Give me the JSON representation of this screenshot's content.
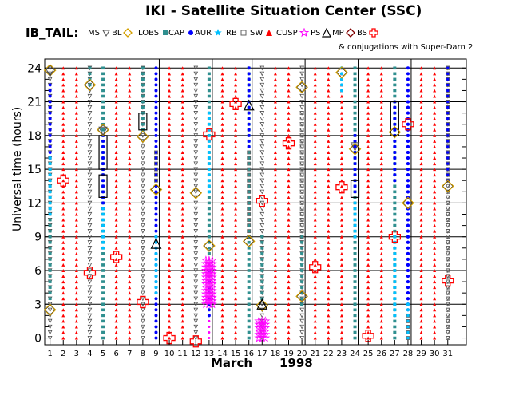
{
  "chart_data": {
    "type": "scatter",
    "title": "IKI - Satellite Situation Center (SSC)",
    "series_label": "IB_TAIL:",
    "legend": [
      {
        "label": "MS",
        "marker": "triangle-down-open",
        "color": "#505050"
      },
      {
        "label": "BL",
        "marker": "diamond-open",
        "color": "#d4a000"
      },
      {
        "label": "LOBS",
        "marker": "square",
        "color": "#2f8f8f"
      },
      {
        "label": "CAP",
        "marker": "circle",
        "color": "#0000ff"
      },
      {
        "label": "AUR",
        "marker": "star",
        "color": "#00c0ff"
      },
      {
        "label": "RB",
        "marker": "square-open",
        "color": "#606060"
      },
      {
        "label": "SW",
        "marker": "triangle",
        "color": "#ff0000"
      },
      {
        "label": "CUSP",
        "marker": "star-open",
        "color": "#ff00ff"
      },
      {
        "label": "PS",
        "marker": "triangle-open",
        "color": "#000000"
      },
      {
        "label": "MP",
        "marker": "diamond-open",
        "color": "#800000"
      },
      {
        "label": "BS",
        "marker": "cross-open",
        "color": "#ff0000"
      }
    ],
    "conjugation_note": "& conjugations with Super-Darn 2",
    "xlabel_month": "March",
    "xlabel_year": "1998",
    "ylabel": "Universal time (hours)",
    "x_ticks": [
      1,
      2,
      3,
      4,
      5,
      6,
      7,
      8,
      9,
      10,
      11,
      12,
      13,
      14,
      15,
      16,
      17,
      18,
      19,
      20,
      21,
      22,
      23,
      24,
      25,
      26,
      27,
      28,
      29,
      30,
      31
    ],
    "y_ticks": [
      0,
      3,
      6,
      9,
      12,
      15,
      18,
      21,
      24
    ],
    "xlim": [
      0.6,
      32.4
    ],
    "ylim": [
      -0.6,
      24.8
    ],
    "grid": true,
    "column_types": {
      "1": "MS",
      "2": "SW",
      "3": "SW",
      "4": "MS",
      "5": "LOBS",
      "6": "SW",
      "7": "SW",
      "8": "MS",
      "9": "CAP",
      "10": "SW",
      "11": "SW",
      "12": "MS",
      "13": "CUSP",
      "14": "SW",
      "15": "SW",
      "16": "LOBS",
      "17": "MS",
      "18": "SW",
      "19": "SW",
      "20": "MS",
      "21": "SW",
      "22": "SW",
      "23": "SW",
      "24": "LOBS",
      "25": "SW",
      "26": "SW",
      "27": "LOBS",
      "28": "CAP",
      "29": "SW",
      "30": "SW",
      "31": "MS"
    },
    "segments": [
      {
        "day": 1,
        "type": "LOBS",
        "from": 3.5,
        "to": 16.0
      },
      {
        "day": 1,
        "type": "CAP",
        "from": 16.0,
        "to": 22.5
      },
      {
        "day": 1,
        "type": "AUR",
        "from": 11.0,
        "to": 16.0
      },
      {
        "day": 4,
        "type": "LOBS",
        "from": 22.5,
        "to": 24.0
      },
      {
        "day": 5,
        "type": "CAP",
        "from": 11.5,
        "to": 18.0
      },
      {
        "day": 5,
        "type": "AUR",
        "from": 8.0,
        "to": 11.5
      },
      {
        "day": 8,
        "type": "LOBS",
        "from": 18.5,
        "to": 24.0
      },
      {
        "day": 9,
        "type": "AUR",
        "from": 4.0,
        "to": 9.0
      },
      {
        "day": 9,
        "type": "RB",
        "from": 14.0,
        "to": 16.5
      },
      {
        "day": 13,
        "type": "CAP",
        "from": 2.0,
        "to": 6.0
      },
      {
        "day": 13,
        "type": "LOBS",
        "from": 7.5,
        "to": 24.0
      },
      {
        "day": 13,
        "type": "AUR",
        "from": 13.0,
        "to": 20.0
      },
      {
        "day": 16,
        "type": "CAP",
        "from": 17.0,
        "to": 24.0
      },
      {
        "day": 16,
        "type": "RB",
        "from": 9.0,
        "to": 16.5
      },
      {
        "day": 17,
        "type": "LOBS",
        "from": 3.5,
        "to": 9.0
      },
      {
        "day": 20,
        "type": "LOBS",
        "from": 3.0,
        "to": 9.0
      },
      {
        "day": 20,
        "type": "RB",
        "from": 9.0,
        "to": 20.0
      },
      {
        "day": 23,
        "type": "AUR",
        "from": 22.0,
        "to": 24.0
      },
      {
        "day": 24,
        "type": "CAP",
        "from": 13.0,
        "to": 18.0
      },
      {
        "day": 24,
        "type": "AUR",
        "from": 9.0,
        "to": 12.0
      },
      {
        "day": 27,
        "type": "CAP",
        "from": 14.0,
        "to": 21.0
      },
      {
        "day": 27,
        "type": "AUR",
        "from": 2.0,
        "to": 9.0
      },
      {
        "day": 28,
        "type": "CAP",
        "from": 3.0,
        "to": 21.0
      },
      {
        "day": 28,
        "type": "AUR",
        "from": 0.0,
        "to": 3.0
      },
      {
        "day": 28,
        "type": "RB",
        "from": 0.0,
        "to": 2.0
      },
      {
        "day": 31,
        "type": "CAP",
        "from": 14.0,
        "to": 24.0
      },
      {
        "day": 31,
        "type": "RB",
        "from": 0.0,
        "to": 24.0
      }
    ],
    "cusp_clusters": [
      {
        "day": 13,
        "from": 3.0,
        "to": 7.0
      },
      {
        "day": 17,
        "from": 0.0,
        "to": 1.5
      }
    ],
    "bl_markers": [
      {
        "day": 1,
        "t": 23.8
      },
      {
        "day": 1,
        "t": 2.5
      },
      {
        "day": 4,
        "t": 22.5
      },
      {
        "day": 5,
        "t": 18.5
      },
      {
        "day": 8,
        "t": 17.9
      },
      {
        "day": 9,
        "t": 13.2
      },
      {
        "day": 12,
        "t": 12.9
      },
      {
        "day": 13,
        "t": 8.2
      },
      {
        "day": 16,
        "t": 8.6
      },
      {
        "day": 17,
        "t": 2.9
      },
      {
        "day": 20,
        "t": 22.3
      },
      {
        "day": 20,
        "t": 3.7
      },
      {
        "day": 23,
        "t": 23.6
      },
      {
        "day": 24,
        "t": 16.8
      },
      {
        "day": 27,
        "t": 18.3
      },
      {
        "day": 28,
        "t": 12.0
      },
      {
        "day": 31,
        "t": 13.5
      }
    ],
    "bs_markers": [
      {
        "day": 2,
        "t": 14.0
      },
      {
        "day": 4,
        "t": 5.8
      },
      {
        "day": 6,
        "t": 7.2
      },
      {
        "day": 8,
        "t": 3.2
      },
      {
        "day": 10,
        "t": 0.0
      },
      {
        "day": 12,
        "t": -0.3
      },
      {
        "day": 13,
        "t": 18.1
      },
      {
        "day": 15,
        "t": 20.8
      },
      {
        "day": 17,
        "t": 12.2
      },
      {
        "day": 19,
        "t": 17.3
      },
      {
        "day": 21,
        "t": 6.3
      },
      {
        "day": 23,
        "t": 13.4
      },
      {
        "day": 25,
        "t": 0.2
      },
      {
        "day": 27,
        "t": 9.0
      },
      {
        "day": 28,
        "t": 19.0
      },
      {
        "day": 31,
        "t": 5.1
      }
    ],
    "mp_markers": [
      {
        "day": 9,
        "t": 8.4
      },
      {
        "day": 16,
        "t": 20.7
      },
      {
        "day": 17,
        "t": 3.0
      }
    ],
    "ms_open_markers": [
      {
        "day": 1,
        "t": 23.6
      },
      {
        "day": 5,
        "t": 18.4
      },
      {
        "day": 24,
        "t": 17.0
      }
    ],
    "conjugation_boxes": [
      {
        "day": 5,
        "from": 15.0,
        "to": 18.0
      },
      {
        "day": 5,
        "from": 12.5,
        "to": 14.5
      },
      {
        "day": 8,
        "from": 18.5,
        "to": 20.0
      },
      {
        "day": 24,
        "from": 12.5,
        "to": 14.0
      },
      {
        "day": 27,
        "from": 18.0,
        "to": 21.0
      }
    ]
  }
}
